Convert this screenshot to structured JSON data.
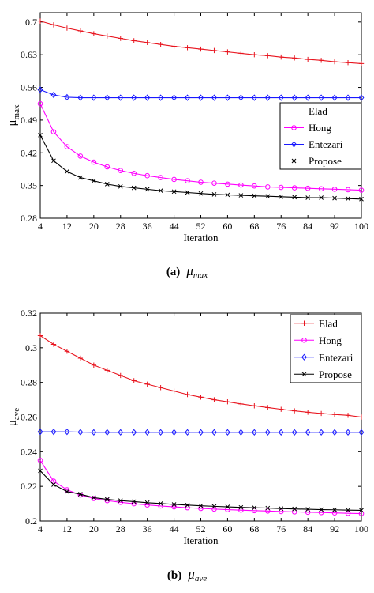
{
  "chart_data": [
    {
      "type": "line",
      "title": "",
      "xlabel": "Iteration",
      "ylabel": "μ",
      "ylabel_sub": "max",
      "xlim": [
        4,
        100
      ],
      "ylim": [
        0.28,
        0.72
      ],
      "xticks": [
        4,
        12,
        20,
        28,
        36,
        44,
        52,
        60,
        68,
        76,
        84,
        92,
        100
      ],
      "yticks": [
        0.28,
        0.35,
        0.42,
        0.49,
        0.56,
        0.63,
        0.7
      ],
      "ytick_labels": [
        "0.28",
        "0.35",
        "0.42",
        "0.49",
        "0.56",
        "0.63",
        "0.7"
      ],
      "grid": false,
      "legend_position": "right-middle",
      "x": [
        4,
        8,
        12,
        16,
        20,
        24,
        28,
        32,
        36,
        40,
        44,
        48,
        52,
        56,
        60,
        64,
        68,
        72,
        76,
        80,
        84,
        88,
        92,
        96,
        100
      ],
      "series": [
        {
          "name": "Elad",
          "color": "#e8141e",
          "marker": "plus",
          "values": [
            0.702,
            0.694,
            0.687,
            0.681,
            0.675,
            0.67,
            0.665,
            0.66,
            0.656,
            0.652,
            0.648,
            0.645,
            0.642,
            0.639,
            0.636,
            0.633,
            0.63,
            0.628,
            0.625,
            0.623,
            0.62,
            0.618,
            0.615,
            0.613,
            0.611
          ]
        },
        {
          "name": "Hong",
          "color": "#ff00ff",
          "marker": "circle",
          "values": [
            0.525,
            0.465,
            0.433,
            0.413,
            0.4,
            0.39,
            0.382,
            0.376,
            0.371,
            0.367,
            0.363,
            0.36,
            0.357,
            0.355,
            0.353,
            0.351,
            0.349,
            0.347,
            0.346,
            0.345,
            0.344,
            0.343,
            0.342,
            0.341,
            0.34
          ]
        },
        {
          "name": "Entezari",
          "color": "#1a1aff",
          "marker": "diamond",
          "values": [
            0.555,
            0.544,
            0.539,
            0.538,
            0.538,
            0.538,
            0.538,
            0.538,
            0.538,
            0.538,
            0.538,
            0.538,
            0.538,
            0.538,
            0.538,
            0.538,
            0.538,
            0.538,
            0.538,
            0.538,
            0.538,
            0.538,
            0.538,
            0.538,
            0.538
          ]
        },
        {
          "name": "Propose",
          "color": "#000000",
          "marker": "x",
          "values": [
            0.458,
            0.403,
            0.38,
            0.367,
            0.36,
            0.353,
            0.348,
            0.345,
            0.342,
            0.339,
            0.337,
            0.335,
            0.333,
            0.331,
            0.33,
            0.329,
            0.328,
            0.327,
            0.326,
            0.325,
            0.324,
            0.324,
            0.323,
            0.322,
            0.321
          ]
        }
      ]
    },
    {
      "type": "line",
      "title": "",
      "xlabel": "Iteration",
      "ylabel": "μ",
      "ylabel_sub": "ave",
      "xlim": [
        4,
        100
      ],
      "ylim": [
        0.2,
        0.32
      ],
      "xticks": [
        4,
        12,
        20,
        28,
        36,
        44,
        52,
        60,
        68,
        76,
        84,
        92,
        100
      ],
      "yticks": [
        0.2,
        0.22,
        0.24,
        0.26,
        0.28,
        0.3,
        0.32
      ],
      "ytick_labels": [
        "0.2",
        "0.22",
        "0.24",
        "0.26",
        "0.28",
        "0.3",
        "0.32"
      ],
      "grid": false,
      "legend_position": "top-right",
      "x": [
        4,
        8,
        12,
        16,
        20,
        24,
        28,
        32,
        36,
        40,
        44,
        48,
        52,
        56,
        60,
        64,
        68,
        72,
        76,
        80,
        84,
        88,
        92,
        96,
        100
      ],
      "series": [
        {
          "name": "Elad",
          "color": "#e8141e",
          "marker": "plus",
          "values": [
            0.307,
            0.302,
            0.298,
            0.294,
            0.29,
            0.287,
            0.284,
            0.281,
            0.279,
            0.277,
            0.275,
            0.273,
            0.2715,
            0.27,
            0.2688,
            0.2676,
            0.2665,
            0.2655,
            0.2645,
            0.2636,
            0.2628,
            0.2621,
            0.2615,
            0.261,
            0.26
          ]
        },
        {
          "name": "Hong",
          "color": "#ff00ff",
          "marker": "circle",
          "values": [
            0.235,
            0.223,
            0.218,
            0.215,
            0.213,
            0.2118,
            0.2108,
            0.21,
            0.2093,
            0.2087,
            0.2082,
            0.2077,
            0.2073,
            0.2069,
            0.2066,
            0.2063,
            0.206,
            0.2058,
            0.2055,
            0.2053,
            0.2051,
            0.2049,
            0.2047,
            0.2045,
            0.2043
          ]
        },
        {
          "name": "Entezari",
          "color": "#1a1aff",
          "marker": "diamond",
          "values": [
            0.2515,
            0.2515,
            0.2515,
            0.2513,
            0.2512,
            0.2512,
            0.2512,
            0.2512,
            0.2512,
            0.2512,
            0.2512,
            0.2512,
            0.2512,
            0.2512,
            0.2512,
            0.2512,
            0.2512,
            0.2512,
            0.2512,
            0.2512,
            0.2512,
            0.2512,
            0.2512,
            0.2512,
            0.2512
          ]
        },
        {
          "name": "Propose",
          "color": "#000000",
          "marker": "x",
          "values": [
            0.229,
            0.221,
            0.217,
            0.2155,
            0.2135,
            0.2125,
            0.2118,
            0.2112,
            0.2106,
            0.2101,
            0.2096,
            0.2092,
            0.2088,
            0.2085,
            0.2082,
            0.2079,
            0.2077,
            0.2075,
            0.2072,
            0.207,
            0.2068,
            0.2066,
            0.2065,
            0.2063,
            0.2062
          ]
        }
      ]
    }
  ],
  "captions": [
    {
      "tag": "(a)",
      "symbol": "μ",
      "subscript": "max"
    },
    {
      "tag": "(b)",
      "symbol": "μ",
      "subscript": "ave"
    }
  ]
}
